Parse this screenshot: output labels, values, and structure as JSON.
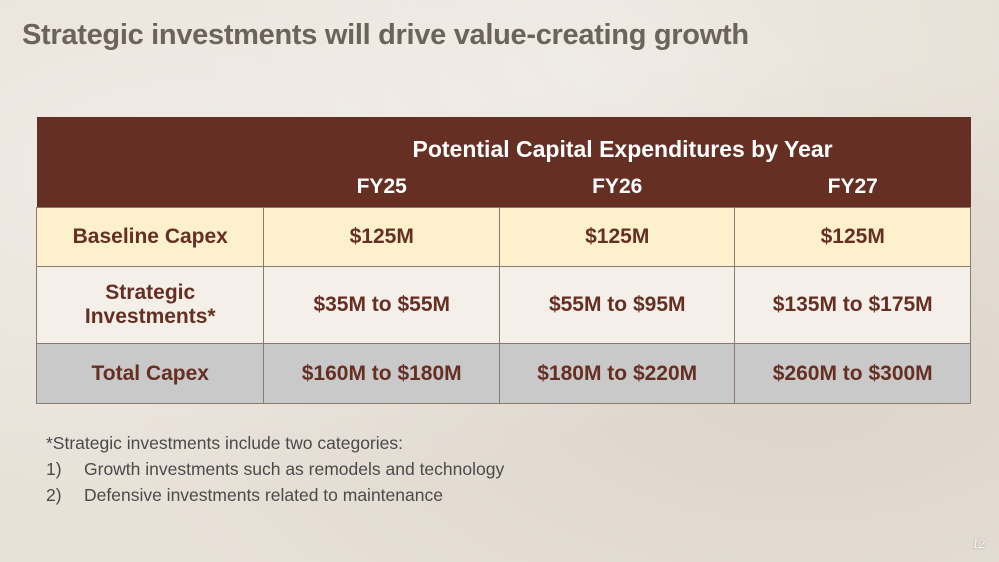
{
  "title": "Strategic investments will drive value-creating growth",
  "table": {
    "caption": "Potential Capital Expenditures by Year",
    "years": [
      "FY25",
      "FY26",
      "FY27"
    ],
    "rows": [
      {
        "label": "Baseline Capex",
        "values": [
          "$125M",
          "$125M",
          "$125M"
        ]
      },
      {
        "label_line1": "Strategic",
        "label_line2": "Investments*",
        "values": [
          "$35M to $55M",
          "$55M to $95M",
          "$135M to $175M"
        ]
      },
      {
        "label": "Total Capex",
        "values": [
          "$160M to $180M",
          "$180M to $220M",
          "$260M to $300M"
        ]
      }
    ]
  },
  "notes": {
    "intro": "*Strategic investments include two categories:",
    "items": [
      {
        "num": "1)",
        "text": "Growth investments such as remodels and technology"
      },
      {
        "num": "2)",
        "text": "Defensive investments related to maintenance"
      }
    ]
  },
  "page_number": "12",
  "colors": {
    "header_bg": "#662f23",
    "baseline_bg": "#fdf0cc",
    "strategic_bg": "#f4efe8",
    "total_bg": "#c9c9c9",
    "value_text": "#662f23"
  }
}
